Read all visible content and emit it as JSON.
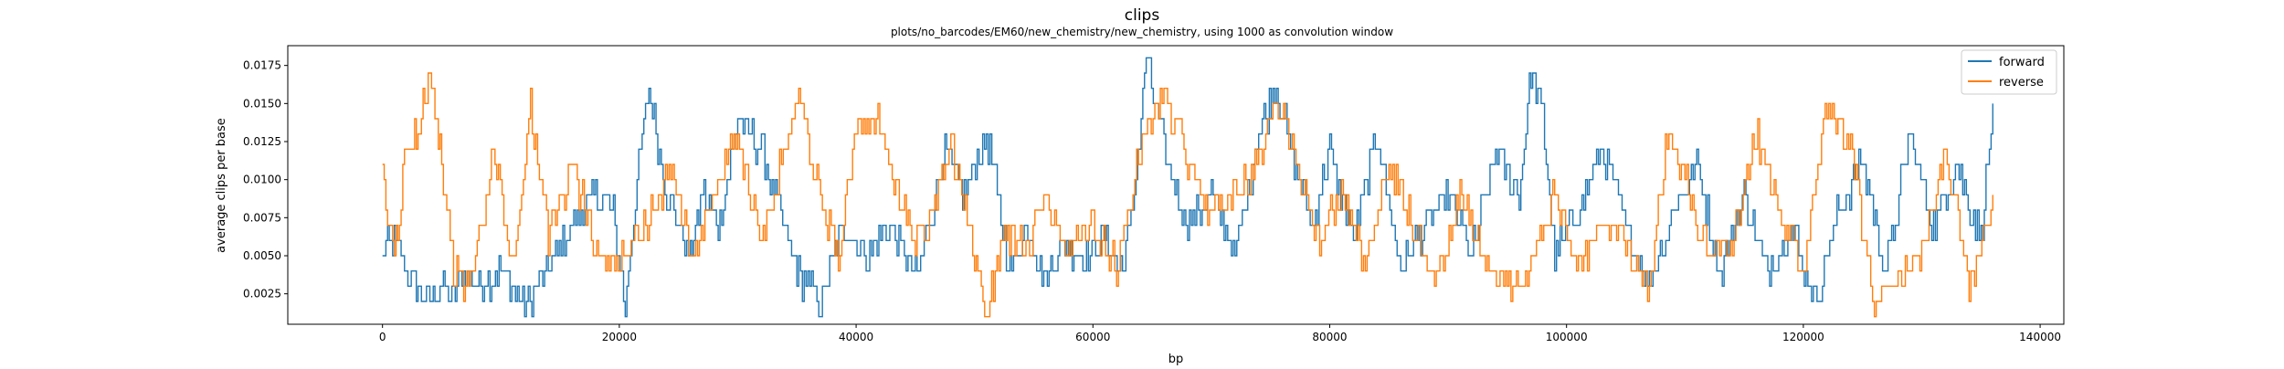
{
  "chart_data": {
    "type": "line",
    "title": "clips",
    "subtitle": "plots/no_barcodes/EM60/new_chemistry/new_chemistry, using 1000 as convolution window",
    "xlabel": "bp",
    "ylabel": "average clips per base",
    "xlim": [
      -8000,
      142000
    ],
    "ylim": [
      0.0005,
      0.0188
    ],
    "x_ticks": [
      0,
      20000,
      40000,
      60000,
      80000,
      100000,
      120000,
      140000
    ],
    "y_ticks": [
      0.0025,
      0.005,
      0.0075,
      0.01,
      0.0125,
      0.015,
      0.0175
    ],
    "y_tick_labels": [
      "0.0025",
      "0.0050",
      "0.0075",
      "0.0100",
      "0.0125",
      "0.0150",
      "0.0175"
    ],
    "grid": false,
    "legend_position": "top-right",
    "series": [
      {
        "name": "forward",
        "color": "#1f77b4",
        "x": [
          0,
          1000,
          2000,
          3000,
          4000,
          5000,
          6000,
          7000,
          8000,
          10000,
          12000,
          14000,
          16000,
          18000,
          19500,
          20500,
          21500,
          22500,
          24000,
          26000,
          27000,
          28500,
          30000,
          32000,
          33500,
          35000,
          37000,
          39000,
          41000,
          43000,
          45000,
          46500,
          47500,
          49000,
          51000,
          53000,
          54500,
          56000,
          57500,
          59000,
          61000,
          62500,
          63500,
          64500,
          66000,
          68000,
          70000,
          72000,
          74000,
          75500,
          77000,
          78500,
          80000,
          82000,
          84000,
          86000,
          88000,
          90000,
          92000,
          94000,
          96000,
          97000,
          98000,
          99000,
          101000,
          103000,
          105000,
          107000,
          109000,
          111000,
          113000,
          115000,
          117000,
          119000,
          121000,
          123000,
          125000,
          127000,
          129000,
          131000,
          133000,
          135000,
          136000
        ],
        "values": [
          0.005,
          0.006,
          0.004,
          0.003,
          0.002,
          0.003,
          0.002,
          0.004,
          0.003,
          0.004,
          0.0015,
          0.004,
          0.007,
          0.009,
          0.008,
          0.0015,
          0.01,
          0.016,
          0.009,
          0.005,
          0.009,
          0.007,
          0.014,
          0.012,
          0.008,
          0.004,
          0.002,
          0.007,
          0.005,
          0.007,
          0.0035,
          0.008,
          0.012,
          0.009,
          0.013,
          0.004,
          0.007,
          0.0035,
          0.006,
          0.005,
          0.006,
          0.004,
          0.009,
          0.018,
          0.012,
          0.007,
          0.009,
          0.005,
          0.013,
          0.016,
          0.011,
          0.007,
          0.012,
          0.006,
          0.013,
          0.004,
          0.007,
          0.009,
          0.005,
          0.012,
          0.009,
          0.017,
          0.014,
          0.005,
          0.008,
          0.012,
          0.007,
          0.003,
          0.008,
          0.011,
          0.004,
          0.009,
          0.004,
          0.007,
          0.002,
          0.008,
          0.011,
          0.004,
          0.013,
          0.007,
          0.011,
          0.006,
          0.015
        ]
      },
      {
        "name": "reverse",
        "color": "#ff7f0e",
        "x": [
          0,
          1000,
          2000,
          3000,
          4000,
          5000,
          6000,
          7000,
          8000,
          9500,
          11000,
          12500,
          14000,
          16000,
          17500,
          19000,
          21000,
          23000,
          24500,
          26000,
          28000,
          30000,
          32000,
          34000,
          35000,
          37000,
          38500,
          40000,
          42000,
          43500,
          45000,
          46500,
          48000,
          50000,
          51000,
          52500,
          54500,
          56000,
          58000,
          60000,
          62000,
          64000,
          66000,
          68000,
          70000,
          72000,
          74000,
          75500,
          77000,
          79000,
          81000,
          83000,
          85000,
          87000,
          89000,
          91000,
          93000,
          95000,
          97000,
          99000,
          101000,
          103000,
          105000,
          107000,
          108500,
          110000,
          112000,
          114000,
          116000,
          118000,
          120000,
          122000,
          124000,
          126000,
          128000,
          130000,
          132000,
          134000,
          136000
        ],
        "values": [
          0.01,
          0.005,
          0.012,
          0.013,
          0.018,
          0.011,
          0.004,
          0.003,
          0.005,
          0.012,
          0.004,
          0.015,
          0.006,
          0.011,
          0.007,
          0.004,
          0.006,
          0.008,
          0.011,
          0.005,
          0.009,
          0.013,
          0.006,
          0.012,
          0.016,
          0.009,
          0.005,
          0.013,
          0.014,
          0.009,
          0.006,
          0.008,
          0.012,
          0.005,
          0.001,
          0.007,
          0.005,
          0.009,
          0.005,
          0.007,
          0.004,
          0.012,
          0.016,
          0.011,
          0.008,
          0.009,
          0.011,
          0.015,
          0.012,
          0.006,
          0.009,
          0.004,
          0.011,
          0.007,
          0.003,
          0.009,
          0.005,
          0.003,
          0.004,
          0.009,
          0.004,
          0.007,
          0.006,
          0.003,
          0.013,
          0.01,
          0.005,
          0.006,
          0.013,
          0.008,
          0.004,
          0.015,
          0.012,
          0.002,
          0.004,
          0.005,
          0.012,
          0.003,
          0.009
        ]
      }
    ]
  }
}
